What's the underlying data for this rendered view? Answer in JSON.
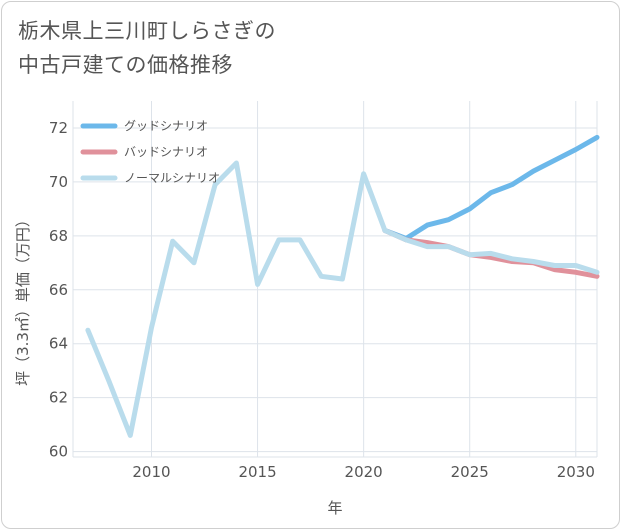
{
  "title": {
    "line1": "栃木県上三川町しらさぎの",
    "line2": "中古戸建ての価格推移"
  },
  "chart_data": {
    "type": "line",
    "xlabel": "年",
    "ylabel": "坪（3.3㎡）単価（万円）",
    "xlim": [
      2006.3,
      2031
    ],
    "ylim": [
      59.8,
      73
    ],
    "xticks": [
      2010,
      2015,
      2020,
      2025,
      2030
    ],
    "yticks": [
      60,
      62,
      64,
      66,
      68,
      70,
      72
    ],
    "grid": true,
    "legend_position": "top-left",
    "series": [
      {
        "name": "グッドシナリオ",
        "color": "#6cb8ea",
        "x": [
          2021,
          2022,
          2023,
          2024,
          2025,
          2026,
          2027,
          2028,
          2029,
          2030,
          2031
        ],
        "y": [
          68.2,
          67.9,
          68.4,
          68.6,
          69.0,
          69.6,
          69.9,
          70.4,
          70.8,
          71.2,
          71.65
        ]
      },
      {
        "name": "バッドシナリオ",
        "color": "#e0919b",
        "x": [
          2021,
          2022,
          2023,
          2024,
          2025,
          2026,
          2027,
          2028,
          2029,
          2030,
          2031
        ],
        "y": [
          68.2,
          67.85,
          67.75,
          67.6,
          67.3,
          67.2,
          67.05,
          67.0,
          66.75,
          66.65,
          66.5
        ]
      },
      {
        "name": "ノーマルシナリオ",
        "color": "#b9dcec",
        "x": [
          2007,
          2008,
          2009,
          2010,
          2011,
          2012,
          2013,
          2014,
          2015,
          2016,
          2017,
          2018,
          2019,
          2020,
          2021,
          2022,
          2023,
          2024,
          2025,
          2026,
          2027,
          2028,
          2029,
          2030,
          2031
        ],
        "y": [
          64.5,
          62.6,
          60.6,
          64.6,
          67.8,
          67.0,
          69.9,
          70.7,
          66.2,
          67.85,
          67.85,
          66.5,
          66.4,
          70.3,
          68.2,
          67.85,
          67.6,
          67.6,
          67.3,
          67.35,
          67.15,
          67.05,
          66.9,
          66.9,
          66.65
        ]
      }
    ]
  }
}
